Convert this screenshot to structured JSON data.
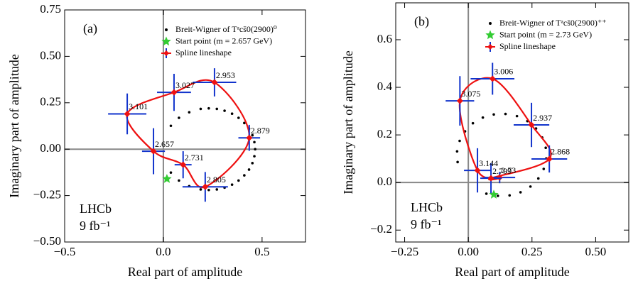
{
  "chart_data": [
    {
      "type": "scatter",
      "panel_label": "(a)",
      "experiment": "LHCb",
      "luminosity": "9 fb⁻¹",
      "x_label": "Real part of amplitude",
      "y_label": "Imaginary part of amplitude",
      "xlim": [
        -0.5,
        0.72
      ],
      "ylim": [
        -0.5,
        0.75
      ],
      "xticks": [
        {
          "value": -0.5,
          "label": "−0.5"
        },
        {
          "value": 0,
          "label": "0.0"
        },
        {
          "value": 0.5,
          "label": "0.5"
        }
      ],
      "yticks": [
        {
          "value": -0.5,
          "label": "−0.50"
        },
        {
          "value": -0.25,
          "label": "−0.25"
        },
        {
          "value": 0,
          "label": "0.00"
        },
        {
          "value": 0.25,
          "label": "0.25"
        },
        {
          "value": 0.5,
          "label": "0.50"
        },
        {
          "value": 0.75,
          "label": "0.75"
        }
      ],
      "series": [
        {
          "name": "Breit-Wigner of Tᵃcs̄0(2900)⁰",
          "marker": "dot",
          "color": "#000000",
          "x": [
            0.038,
            0.079,
            0.131,
            0.189,
            0.23,
            0.271,
            0.31,
            0.348,
            0.381,
            0.41,
            0.434,
            0.451,
            0.461,
            0.465,
            0.461,
            0.451,
            0.434,
            0.41,
            0.381,
            0.348,
            0.31,
            0.271,
            0.23,
            0.189,
            0.131,
            0.079,
            0.038
          ],
          "y": [
            0.126,
            0.169,
            0.199,
            0.217,
            0.22,
            0.217,
            0.207,
            0.191,
            0.169,
            0.141,
            0.11,
            0.075,
            0.038,
            0,
            -0.038,
            -0.075,
            -0.11,
            -0.141,
            -0.169,
            -0.191,
            -0.207,
            -0.217,
            -0.22,
            -0.217,
            -0.199,
            -0.169,
            -0.126
          ]
        },
        {
          "name": "Start point (m = 2.657 GeV)",
          "marker": "star",
          "color": "#33cc33",
          "x": [
            0.018
          ],
          "y": [
            -0.16
          ]
        },
        {
          "name": "Spline lineshape",
          "marker": "errorbar",
          "color": "#ee1111",
          "error_color": "#1133cc",
          "labels": [
            "2.657",
            "2.731",
            "2.805",
            "2.879",
            "2.953",
            "3.027",
            "3.101"
          ],
          "x": [
            -0.05,
            0.1,
            0.212,
            0.435,
            0.259,
            0.054,
            -0.183
          ],
          "y": [
            -0.011,
            -0.084,
            -0.203,
            0.061,
            0.36,
            0.306,
            0.19
          ],
          "xerr": [
            0.058,
            0.043,
            0.115,
            0.055,
            0.11,
            0.086,
            0.097
          ],
          "yerr": [
            0.124,
            0.073,
            0.08,
            0.07,
            0.076,
            0.1,
            0.11
          ]
        }
      ]
    },
    {
      "type": "scatter",
      "panel_label": "(b)",
      "experiment": "LHCb",
      "luminosity": "9 fb⁻¹",
      "x_label": "Real part of amplitude",
      "y_label": "Imaginary part of amplitude",
      "xlim": [
        -0.285,
        0.63
      ],
      "ylim": [
        -0.25,
        0.755
      ],
      "xticks": [
        {
          "value": -0.25,
          "label": "−0.25"
        },
        {
          "value": 0,
          "label": "0.00"
        },
        {
          "value": 0.25,
          "label": "0.25"
        },
        {
          "value": 0.5,
          "label": "0.50"
        }
      ],
      "yticks": [
        {
          "value": -0.2,
          "label": "−0.2"
        },
        {
          "value": 0,
          "label": "0.0"
        },
        0.2,
        0.4,
        0.6
      ],
      "series": [
        {
          "name": "Breit-Wigner of Tᵃcs̄0(2900)⁺⁺",
          "marker": "dot",
          "color": "#000000",
          "x": [
            -0.042,
            -0.044,
            -0.034,
            -0.013,
            0.018,
            0.057,
            0.1,
            0.146,
            0.191,
            0.232,
            0.266,
            0.29,
            0.304,
            0.306,
            0.296,
            0.275,
            0.244,
            0.205,
            0.162,
            0.116,
            0.071
          ],
          "y": [
            0.086,
            0.131,
            0.175,
            0.215,
            0.249,
            0.273,
            0.286,
            0.288,
            0.279,
            0.258,
            0.227,
            0.189,
            0.146,
            0.101,
            0.057,
            0.017,
            -0.017,
            -0.041,
            -0.054,
            -0.056,
            -0.047
          ]
        },
        {
          "name": "Start point (m = 2.73 GeV)",
          "marker": "star",
          "color": "#33cc33",
          "x": [
            0.1
          ],
          "y": [
            -0.051
          ]
        },
        {
          "name": "Spline lineshape",
          "marker": "errorbar",
          "color": "#ee1111",
          "error_color": "#1133cc",
          "labels": [
            "2.73",
            "2.799",
            "2.868",
            "2.937",
            "3.006",
            "3.075",
            "3.144"
          ],
          "x": [
            0.123,
            0.089,
            0.318,
            0.248,
            0.095,
            -0.033,
            0.036
          ],
          "y": [
            0.021,
            0.018,
            0.099,
            0.242,
            0.436,
            0.343,
            0.051
          ],
          "xerr": [
            0.061,
            0.042,
            0.07,
            0.07,
            0.086,
            0.056,
            0.053
          ],
          "yerr": [
            0.024,
            0.063,
            0.057,
            0.093,
            0.067,
            0.104,
            0.093
          ]
        }
      ]
    }
  ]
}
